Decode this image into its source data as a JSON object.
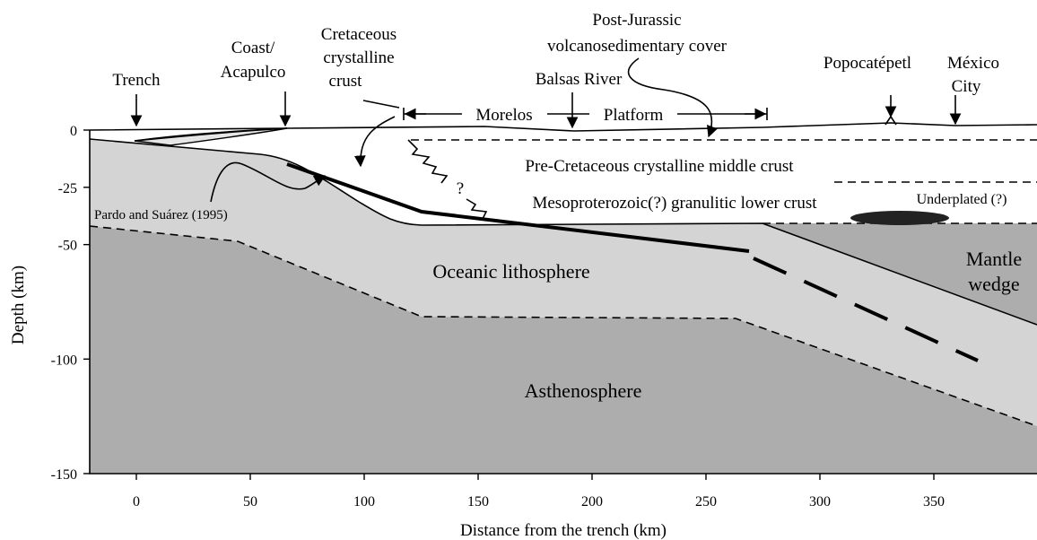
{
  "axes": {
    "x_label": "Distance from the trench (km)",
    "y_label": "Depth (km)",
    "xticks": [
      0,
      50,
      100,
      150,
      200,
      250,
      300,
      350
    ],
    "yticks": [
      0,
      -25,
      -50,
      -100,
      -150
    ]
  },
  "labels": {
    "trench": [
      "Trench"
    ],
    "coast": [
      "Coast/",
      "Acapulco"
    ],
    "cretaceous": [
      "Cretaceous",
      "crystalline",
      "crust"
    ],
    "post_jurassic": [
      "Post-Jurassic",
      "volcanosedimentary cover"
    ],
    "balsas": [
      "Balsas River"
    ],
    "popocatepetl": [
      "Popocatépetl"
    ],
    "mexico_city": [
      "México",
      "City"
    ],
    "morelos_platform": [
      "Morelos",
      "Platform"
    ],
    "middle_crust": [
      "Pre-Cretaceous crystalline middle crust"
    ],
    "lower_crust": [
      "Mesoproterozoic(?) granulitic lower crust"
    ],
    "question": [
      "?"
    ],
    "underplated": [
      "Underplated (?)"
    ],
    "pardo": [
      "Pardo and Suárez (1995)"
    ],
    "oceanic": [
      "Oceanic lithosphere"
    ],
    "mantle_wedge": [
      "Mantle",
      "wedge"
    ],
    "asthenosphere": [
      "Asthenosphere"
    ]
  }
}
